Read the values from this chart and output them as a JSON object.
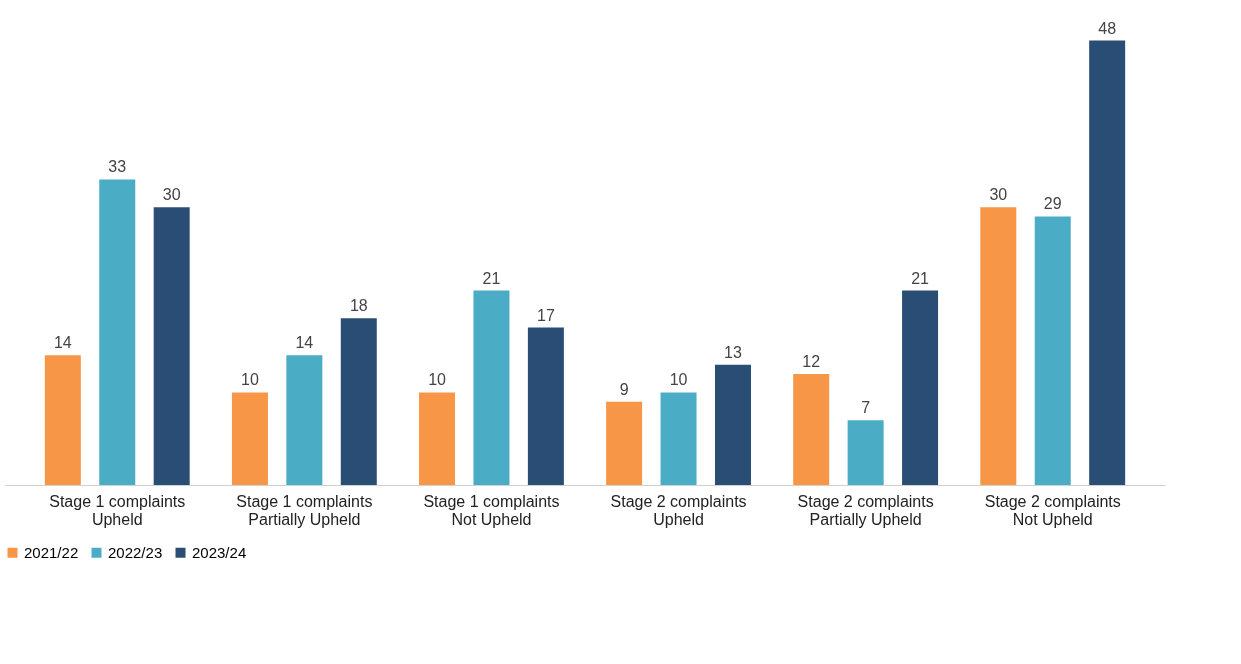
{
  "chart_data": {
    "type": "bar",
    "categories": [
      "Stage 1 complaints\nUpheld",
      "Stage 1 complaints\nPartially Upheld",
      "Stage 1 complaints\nNot Upheld",
      "Stage 2 complaints\nUpheld",
      "Stage 2 complaints\nPartially Upheld",
      "Stage 2 complaints\nNot Upheld"
    ],
    "series": [
      {
        "name": "2021/22",
        "color": "#f79646",
        "values": [
          14,
          10,
          10,
          9,
          12,
          30
        ]
      },
      {
        "name": "2022/23",
        "color": "#4bacc6",
        "values": [
          33,
          14,
          21,
          10,
          7,
          29
        ]
      },
      {
        "name": "2023/24",
        "color": "#2a4d75",
        "values": [
          30,
          18,
          17,
          13,
          21,
          48
        ]
      }
    ],
    "data_labels": true,
    "grid": false,
    "legend": "bottom"
  }
}
